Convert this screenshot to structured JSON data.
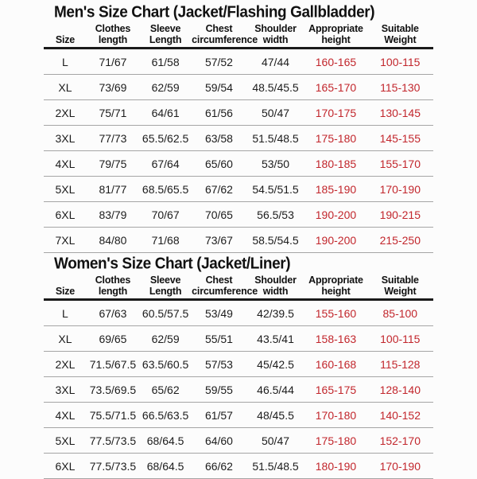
{
  "style": {
    "background": "#fcfcfc",
    "text_color": "#1c1c1c",
    "red_color": "#c2262c",
    "divider_color": "#a5a5a5",
    "header_rule_color": "#1a1a1a",
    "red_columns": [
      5,
      6
    ]
  },
  "tables": [
    {
      "id": "men",
      "title": "Men's Size Chart (Jacket/Flashing Gallbladder)",
      "headers": [
        [
          "Size"
        ],
        [
          "Clothes",
          "length"
        ],
        [
          "Sleeve",
          "Length"
        ],
        [
          "Chest",
          "circumference"
        ],
        [
          "Shoulder",
          "width"
        ],
        [
          "Appropriate",
          "height"
        ],
        [
          "Suitable",
          "Weight"
        ]
      ],
      "rows": [
        [
          "L",
          "71/67",
          "61/58",
          "57/52",
          "47/44",
          "160-165",
          "100-115"
        ],
        [
          "XL",
          "73/69",
          "62/59",
          "59/54",
          "48.5/45.5",
          "165-170",
          "115-130"
        ],
        [
          "2XL",
          "75/71",
          "64/61",
          "61/56",
          "50/47",
          "170-175",
          "130-145"
        ],
        [
          "3XL",
          "77/73",
          "65.5/62.5",
          "63/58",
          "51.5/48.5",
          "175-180",
          "145-155"
        ],
        [
          "4XL",
          "79/75",
          "67/64",
          "65/60",
          "53/50",
          "180-185",
          "155-170"
        ],
        [
          "5XL",
          "81/77",
          "68.5/65.5",
          "67/62",
          "54.5/51.5",
          "185-190",
          "170-190"
        ],
        [
          "6XL",
          "83/79",
          "70/67",
          "70/65",
          "56.5/53",
          "190-200",
          "190-215"
        ],
        [
          "7XL",
          "84/80",
          "71/68",
          "73/67",
          "58.5/54.5",
          "190-200",
          "215-250"
        ]
      ]
    },
    {
      "id": "women",
      "title": "Women's Size Chart (Jacket/Liner)",
      "headers": [
        [
          "Size"
        ],
        [
          "Clothes",
          "length"
        ],
        [
          "Sleeve",
          "Length"
        ],
        [
          "Chest",
          "circumference"
        ],
        [
          "Shoulder",
          "width"
        ],
        [
          "Appropriate",
          "height"
        ],
        [
          "Suitable",
          "Weight"
        ]
      ],
      "rows": [
        [
          "L",
          "67/63",
          "60.5/57.5",
          "53/49",
          "42/39.5",
          "155-160",
          "85-100"
        ],
        [
          "XL",
          "69/65",
          "62/59",
          "55/51",
          "43.5/41",
          "158-163",
          "100-115"
        ],
        [
          "2XL",
          "71.5/67.5",
          "63.5/60.5",
          "57/53",
          "45/42.5",
          "160-168",
          "115-128"
        ],
        [
          "3XL",
          "73.5/69.5",
          "65/62",
          "59/55",
          "46.5/44",
          "165-175",
          "128-140"
        ],
        [
          "4XL",
          "75.5/71.5",
          "66.5/63.5",
          "61/57",
          "48/45.5",
          "170-180",
          "140-152"
        ],
        [
          "5XL",
          "77.5/73.5",
          "68/64.5",
          "64/60",
          "50/47",
          "175-180",
          "152-170"
        ],
        [
          "6XL",
          "77.5/73.5",
          "68/64.5",
          "66/62",
          "51.5/48.5",
          "180-190",
          "170-190"
        ]
      ]
    }
  ]
}
